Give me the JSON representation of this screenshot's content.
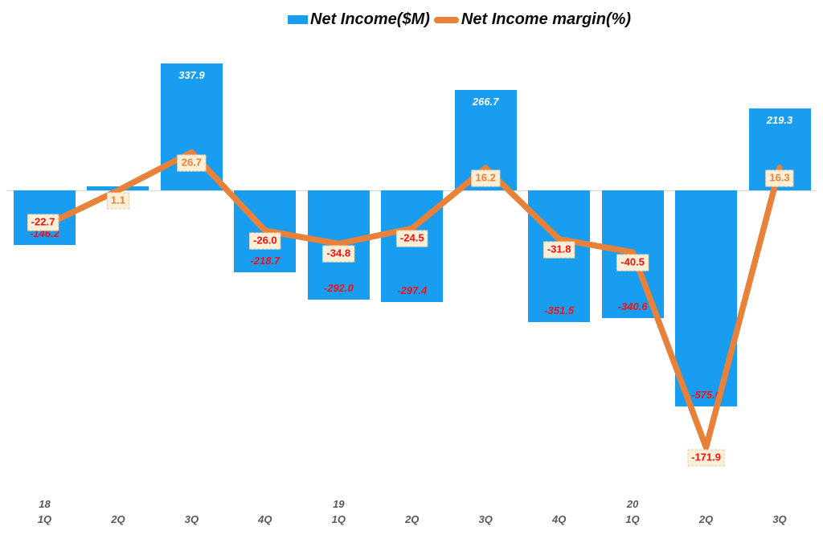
{
  "legend": {
    "items": [
      {
        "label": "Net Income($M)",
        "marker": "bar-swatch",
        "color": "#189DF0"
      },
      {
        "label": "Net Income margin(%)",
        "marker": "line-dash",
        "color": "#E8813A"
      }
    ]
  },
  "chart_data": {
    "type": "bar+line combo",
    "title": "",
    "categories": [
      "18 1Q",
      "2Q",
      "3Q",
      "4Q",
      "19 1Q",
      "2Q",
      "3Q",
      "4Q",
      "20 1Q",
      "2Q",
      "3Q"
    ],
    "x_axis": [
      {
        "year": "18",
        "quarter": "1Q"
      },
      {
        "year": "",
        "quarter": "2Q"
      },
      {
        "year": "",
        "quarter": "3Q"
      },
      {
        "year": "",
        "quarter": "4Q"
      },
      {
        "year": "19",
        "quarter": "1Q"
      },
      {
        "year": "",
        "quarter": "2Q"
      },
      {
        "year": "",
        "quarter": "3Q"
      },
      {
        "year": "",
        "quarter": "4Q"
      },
      {
        "year": "20",
        "quarter": "1Q"
      },
      {
        "year": "",
        "quarter": "2Q"
      },
      {
        "year": "",
        "quarter": "3Q"
      }
    ],
    "series": [
      {
        "name": "Net Income($M)",
        "type": "bar",
        "unit": "$M",
        "color": "#189DF0",
        "values": [
          -146.2,
          11,
          337.9,
          -218.7,
          -292.0,
          -297.4,
          266.7,
          -351.5,
          -340.6,
          -575.6,
          219.3
        ],
        "labels": [
          "-146.2",
          null,
          "337.9",
          "-218.7",
          "-292.0",
          "-297.4",
          "266.7",
          "-351.5",
          "-340.6",
          "-575.6",
          "219.3"
        ],
        "positive_label_color": "#FFFFFF",
        "negative_label_color": "#F81010"
      },
      {
        "name": "Net Income margin(%)",
        "type": "line",
        "unit": "%",
        "color": "#E8813A",
        "values": [
          -22.7,
          1.1,
          26.7,
          -26.0,
          -34.8,
          -24.5,
          16.2,
          -31.8,
          -40.5,
          -171.9,
          16.3
        ],
        "labels": [
          "-22.7",
          "1.1",
          "26.7",
          "-26.0",
          "-34.8",
          "-24.5",
          "16.2",
          "-31.8",
          "-40.5",
          "-171.9",
          "16.3"
        ],
        "label_bg": "#FCEFD8",
        "positive_label_color": "#E8813A",
        "negative_label_color": "#F81010"
      }
    ],
    "legend_position": "top-center",
    "grid": "off",
    "baseline_color": "#D9D9D9",
    "axis_label_color": "#595959"
  }
}
